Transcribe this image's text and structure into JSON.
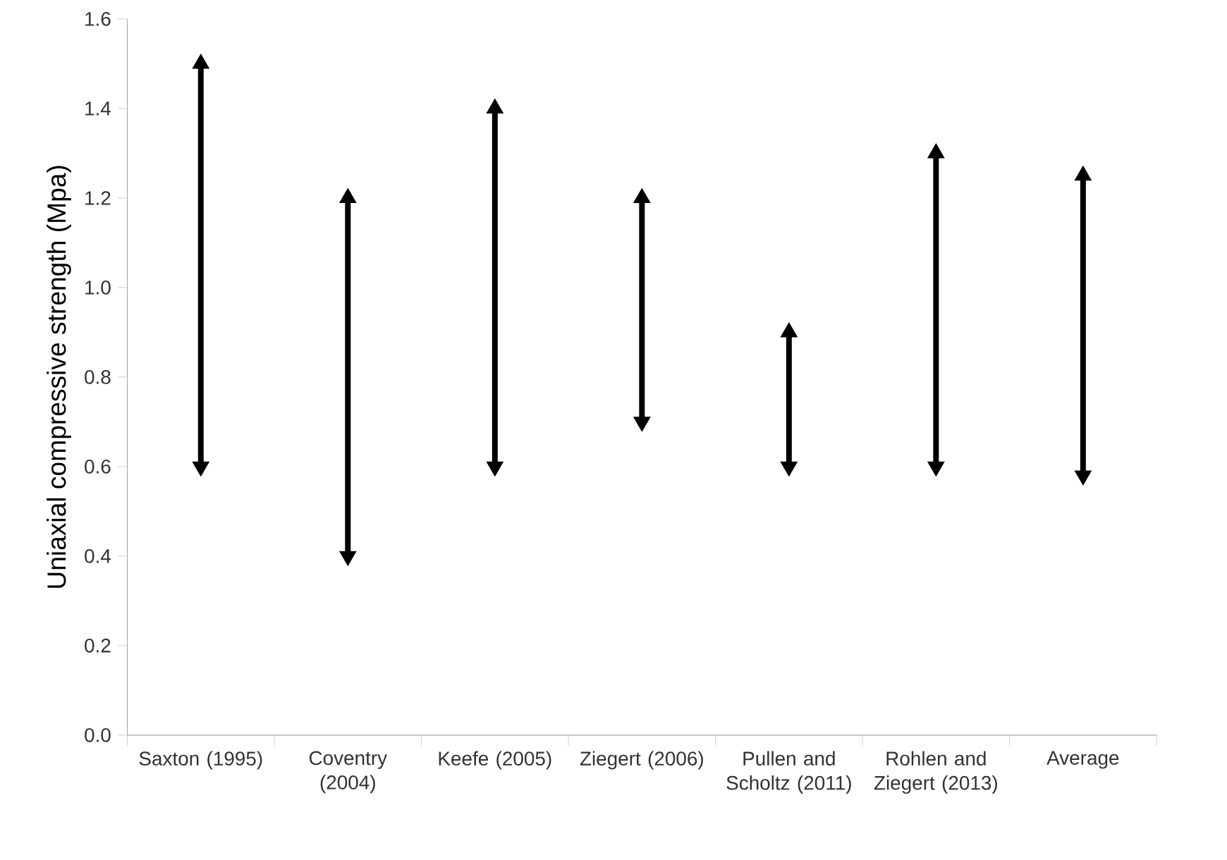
{
  "chart_data": {
    "type": "bar",
    "ylabel": "Uniaxial compressive strength (Mpa)",
    "categories": [
      "Saxton (1995)",
      "Coventry (2004)",
      "Keefe (2005)",
      "Ziegert (2006)",
      "Pullen and Scholtz (2011)",
      "Rohlen and Ziegert (2013)",
      "Average"
    ],
    "series": [
      {
        "color": "#000000",
        "base": [
          0.6,
          0.4,
          0.6,
          0.7,
          0.6,
          0.6,
          0.58
        ],
        "values": [
          0.9,
          0.8,
          0.8,
          0.5,
          0.3,
          0.7,
          0.67
        ]
      },
      {
        "type": "scatter",
        "marker": "triangle",
        "color": "#000000",
        "x": [
          "Saxton (1995)",
          "Coventry (2004)",
          "Keefe (2005)",
          "Ziegert (2006)",
          "Pullen and Scholtz (2011)",
          "Rohlen and Ziegert (2013)",
          "Average"
        ],
        "values": [
          1.5,
          1.2,
          1.4,
          1.2,
          0.9,
          1.3,
          1.25
        ]
      },
      {
        "type": "scatter",
        "marker": "triangle",
        "color": "#000000",
        "x": [
          "Saxton (1995)",
          "Coventry (2004)",
          "Keefe (2005)",
          "Ziegert (2006)",
          "Pullen and Scholtz (2011)",
          "Rohlen and Ziegert (2013)",
          "Average"
        ],
        "values": [
          0.6,
          0.4,
          0.6,
          0.7,
          0.6,
          0.6,
          0.58
        ]
      }
    ],
    "ylim": [
      0,
      1.6
    ],
    "yticks": [
      {
        "value": 0,
        "label": "0.0"
      },
      {
        "value": 0.2,
        "label": "0.2"
      },
      {
        "value": 0.4,
        "label": "0.4"
      },
      {
        "value": 0.6,
        "label": "0.6"
      },
      {
        "value": 0.8,
        "label": "0.8"
      },
      {
        "value": 1.0,
        "label": "1.0"
      },
      {
        "value": 1.2,
        "label": "1.2"
      },
      {
        "value": 1.4,
        "label": "1.4"
      },
      {
        "value": 1.6,
        "label": "1.6"
      }
    ]
  }
}
